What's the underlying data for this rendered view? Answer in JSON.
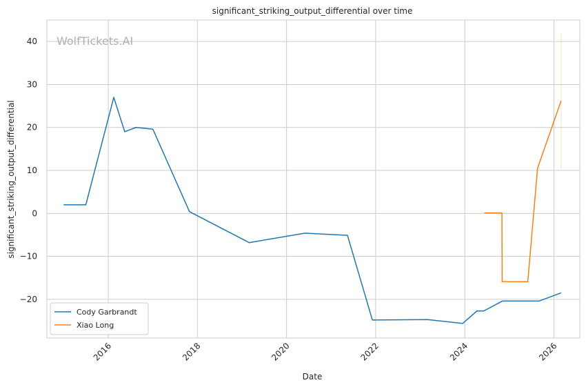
{
  "chart_data": {
    "type": "line",
    "title": "significant_striking_output_differential over time",
    "xlabel": "Date",
    "ylabel": "significant_striking_output_differential",
    "watermark": "WolfTickets.AI",
    "x_axis": "date",
    "xlim": [
      "2014-08-16",
      "2026-08-01"
    ],
    "ylim": [
      -29.0,
      45.0
    ],
    "x_ticks": [
      "2016",
      "2018",
      "2020",
      "2022",
      "2024",
      "2026"
    ],
    "y_ticks": [
      -20,
      -10,
      0,
      10,
      20,
      30,
      40
    ],
    "y_tick_labels": [
      "−20",
      "−10",
      "0",
      "10",
      "20",
      "30",
      "40"
    ],
    "grid": true,
    "legend_position": "lower-left",
    "series": [
      {
        "name": "Cody Garbrandt",
        "color": "#1f77b4",
        "points": [
          [
            "2014-12-31",
            2.0
          ],
          [
            "2015-07-01",
            2.0
          ],
          [
            "2016-02-15",
            27.0
          ],
          [
            "2016-05-15",
            19.0
          ],
          [
            "2016-08-15",
            20.0
          ],
          [
            "2017-01-01",
            19.6
          ],
          [
            "2017-10-28",
            0.4
          ],
          [
            "2019-03-01",
            -6.8
          ],
          [
            "2020-06-01",
            -4.6
          ],
          [
            "2021-05-15",
            -5.1
          ],
          [
            "2021-12-05",
            -24.8
          ],
          [
            "2023-03-01",
            -24.7
          ],
          [
            "2023-12-15",
            -25.6
          ],
          [
            "2024-04-10",
            -22.7
          ],
          [
            "2024-06-05",
            -22.7
          ],
          [
            "2024-11-05",
            -20.4
          ],
          [
            "2025-09-01",
            -20.4
          ],
          [
            "2026-03-01",
            -18.5
          ]
        ]
      },
      {
        "name": "Xiao Long",
        "color": "#ff7f0e",
        "points": [
          [
            "2024-06-10",
            0.1
          ],
          [
            "2024-11-01",
            0.1
          ],
          [
            "2024-11-03",
            -15.9
          ],
          [
            "2025-06-01",
            -15.9
          ],
          [
            "2025-08-20",
            10.5
          ],
          [
            "2026-03-01",
            26.2
          ]
        ]
      }
    ],
    "band": {
      "series": "Xiao Long",
      "x": "2026-03-01",
      "y_range": [
        10.3,
        41.8
      ]
    }
  }
}
